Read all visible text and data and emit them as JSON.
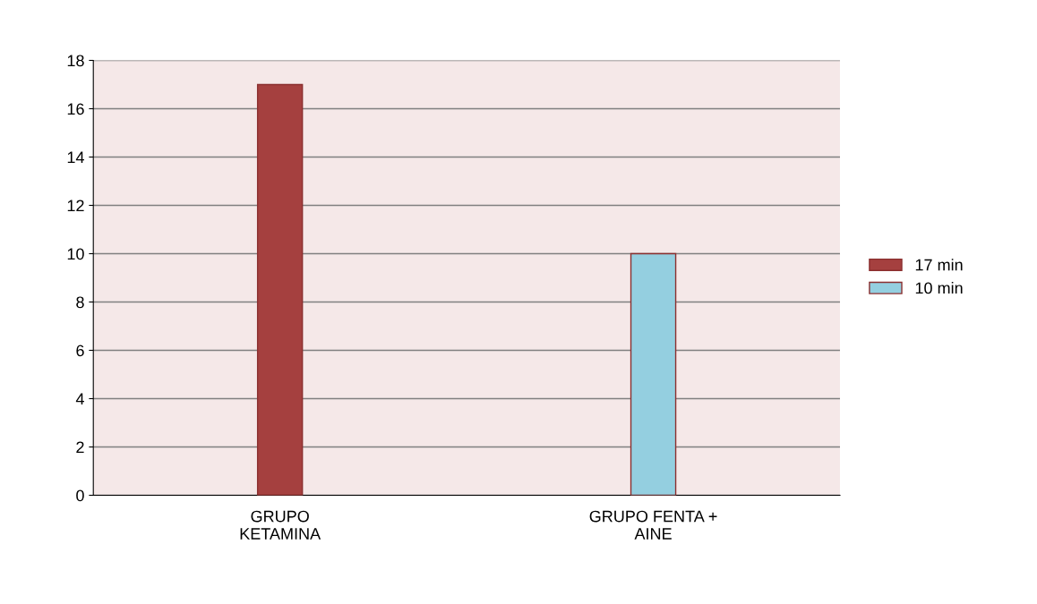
{
  "chart_data": {
    "type": "bar",
    "categories": [
      "GRUPO\nKETAMINA",
      "GRUPO FENTA +\nAINE"
    ],
    "series": [
      {
        "name": "17 min",
        "color": "#a5403f",
        "values": [
          17,
          null
        ]
      },
      {
        "name": "10 min",
        "color": "#94cfe0",
        "values": [
          null,
          10
        ]
      }
    ],
    "ylim": [
      0,
      18
    ],
    "yticks": [
      0,
      2,
      4,
      6,
      8,
      10,
      12,
      14,
      16,
      18
    ],
    "grid": "y",
    "legend": "right"
  }
}
